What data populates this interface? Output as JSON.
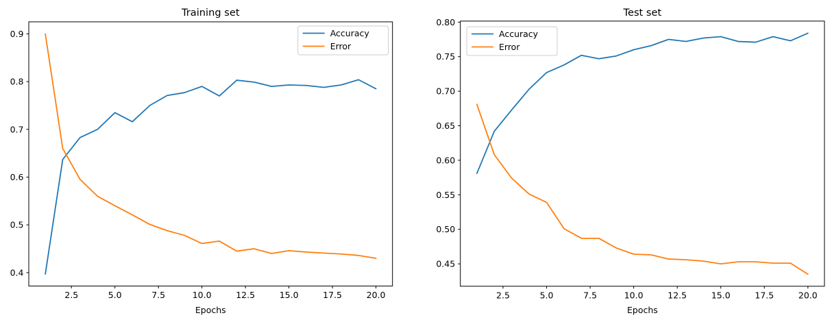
{
  "figure": {
    "background": "#ffffff",
    "accuracy_color": "#1f77b4",
    "error_color": "#ff7f0e",
    "spine_color": "#000000",
    "text_color": "#000000",
    "legend_border_color": "#cccccc",
    "legend_fill": "#ffffff"
  },
  "chart_data": [
    {
      "type": "line",
      "title": "Training set",
      "xlabel": "Epochs",
      "ylabel": "",
      "grid": false,
      "legend_position": "upper right",
      "x": [
        1,
        2,
        3,
        4,
        5,
        6,
        7,
        8,
        9,
        10,
        11,
        12,
        13,
        14,
        15,
        16,
        17,
        18,
        19,
        20
      ],
      "series": [
        {
          "name": "Accuracy",
          "color": "#1f77b4",
          "values": [
            0.397,
            0.637,
            0.683,
            0.7,
            0.735,
            0.716,
            0.75,
            0.771,
            0.777,
            0.79,
            0.77,
            0.803,
            0.799,
            0.79,
            0.793,
            0.792,
            0.788,
            0.793,
            0.804,
            0.785
          ]
        },
        {
          "name": "Error",
          "color": "#ff7f0e",
          "values": [
            0.9,
            0.66,
            0.595,
            0.56,
            0.54,
            0.521,
            0.501,
            0.488,
            0.478,
            0.461,
            0.466,
            0.445,
            0.45,
            0.44,
            0.446,
            0.443,
            0.441,
            0.439,
            0.436,
            0.43
          ]
        }
      ],
      "xlim": [
        0.05,
        20.95
      ],
      "ylim": [
        0.3719,
        0.9252
      ],
      "xticks": {
        "values": [
          2.5,
          5.0,
          7.5,
          10.0,
          12.5,
          15.0,
          17.5,
          20.0
        ],
        "labels": [
          "2.5",
          "5.0",
          "7.5",
          "10.0",
          "12.5",
          "15.0",
          "17.5",
          "20.0"
        ]
      },
      "yticks": {
        "values": [
          0.4,
          0.5,
          0.6,
          0.7,
          0.8,
          0.9
        ],
        "labels": [
          "0.4",
          "0.5",
          "0.6",
          "0.7",
          "0.8",
          "0.9"
        ]
      }
    },
    {
      "type": "line",
      "title": "Test set",
      "xlabel": "Epochs",
      "ylabel": "",
      "grid": false,
      "legend_position": "upper left",
      "x": [
        1,
        2,
        3,
        4,
        5,
        6,
        7,
        8,
        9,
        10,
        11,
        12,
        13,
        14,
        15,
        16,
        17,
        18,
        19,
        20
      ],
      "series": [
        {
          "name": "Accuracy",
          "color": "#1f77b4",
          "values": [
            0.581,
            0.642,
            0.673,
            0.703,
            0.727,
            0.738,
            0.752,
            0.747,
            0.751,
            0.76,
            0.766,
            0.775,
            0.772,
            0.777,
            0.779,
            0.772,
            0.771,
            0.779,
            0.773,
            0.784
          ]
        },
        {
          "name": "Error",
          "color": "#ff7f0e",
          "values": [
            0.681,
            0.608,
            0.574,
            0.551,
            0.539,
            0.501,
            0.487,
            0.487,
            0.473,
            0.464,
            0.463,
            0.457,
            0.456,
            0.454,
            0.45,
            0.453,
            0.453,
            0.451,
            0.451,
            0.435
          ]
        }
      ],
      "xlim": [
        0.05,
        20.95
      ],
      "ylim": [
        0.4176,
        0.8015
      ],
      "xticks": {
        "values": [
          2.5,
          5.0,
          7.5,
          10.0,
          12.5,
          15.0,
          17.5,
          20.0
        ],
        "labels": [
          "2.5",
          "5.0",
          "7.5",
          "10.0",
          "12.5",
          "15.0",
          "17.5",
          "20.0"
        ]
      },
      "yticks": {
        "values": [
          0.45,
          0.5,
          0.55,
          0.6,
          0.65,
          0.7,
          0.75,
          0.8
        ],
        "labels": [
          "0.45",
          "0.50",
          "0.55",
          "0.60",
          "0.65",
          "0.70",
          "0.75",
          "0.80"
        ]
      }
    }
  ]
}
